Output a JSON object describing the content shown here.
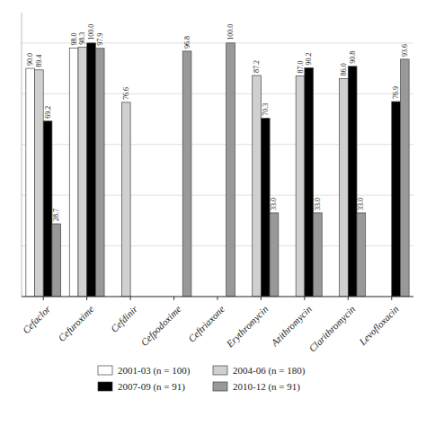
{
  "chart_data": {
    "type": "bar",
    "categories": [
      "Cefaclor",
      "Cefuroxime",
      "Cefdinir",
      "Cefpodoxime",
      "Ceftriaxone",
      "Erythromycin",
      "Azithromycin",
      "Clarithromycin",
      "Levofloxacin"
    ],
    "series": [
      {
        "name": "2001-03 (n = 100)",
        "color": "#ffffff",
        "values": [
          90.0,
          98.0,
          null,
          null,
          null,
          null,
          null,
          null,
          null
        ],
        "value_labels": [
          "90.0",
          "98.0",
          null,
          null,
          null,
          null,
          null,
          null,
          null
        ]
      },
      {
        "name": "2004-06 (n = 180)",
        "color": "#d0d0d0",
        "values": [
          89.4,
          98.3,
          76.6,
          null,
          null,
          87.2,
          87.0,
          86.0,
          null
        ],
        "value_labels": [
          "89.4",
          "98.3",
          "76.6",
          null,
          null,
          "87.2",
          "87.0",
          "86.0",
          null
        ]
      },
      {
        "name": "2007-09 (n = 91)",
        "color": "#000000",
        "values": [
          69.2,
          100.0,
          null,
          null,
          null,
          70.3,
          90.2,
          90.8,
          76.9
        ],
        "value_labels": [
          "69.2",
          "100.0",
          null,
          null,
          null,
          "70.3",
          "90.2",
          "90.8",
          "76.9"
        ]
      },
      {
        "name": "2010-12 (n = 91)",
        "color": "#999999",
        "values": [
          28.7,
          97.9,
          null,
          96.8,
          100.0,
          33.0,
          33.0,
          33.0,
          93.6
        ],
        "value_labels": [
          "28.7",
          "97.9",
          null,
          "96.8",
          "100.0",
          "33.0",
          "33.0",
          "33.0",
          "93.6"
        ]
      }
    ],
    "ylim": [
      0,
      112
    ],
    "yticks": [
      0,
      20,
      40,
      60,
      80,
      100
    ],
    "grid": true,
    "tick_labels": "x",
    "data_labels": true,
    "legend": "bottom"
  }
}
